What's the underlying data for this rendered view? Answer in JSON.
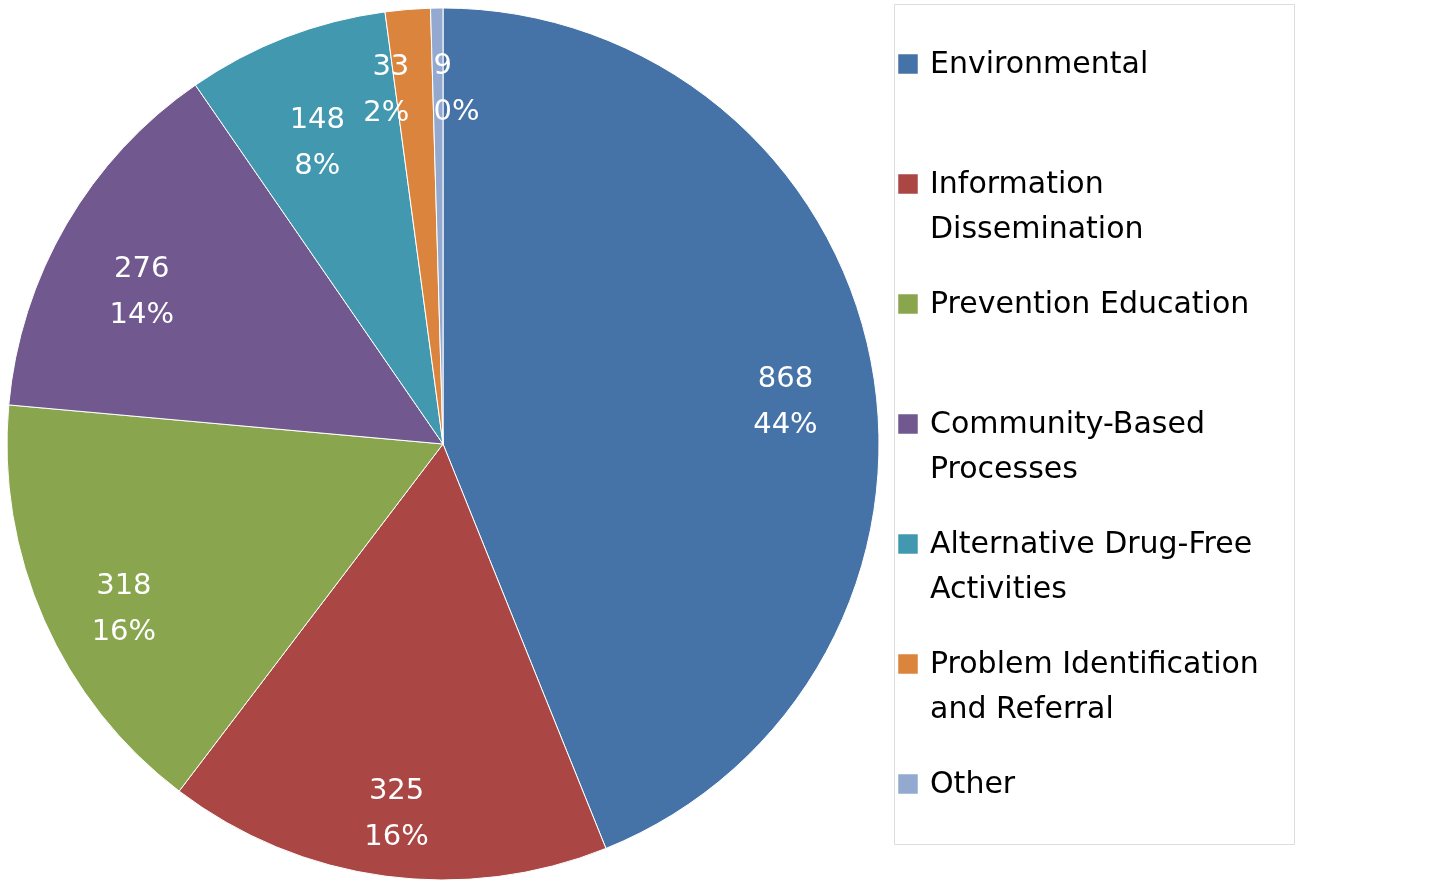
{
  "chart_data": {
    "type": "pie",
    "categories": [
      "Environmental",
      "Information Dissemination",
      "Prevention Education",
      "Community-Based Processes",
      "Alternative Drug-Free Activities",
      "Problem Identification and Referral",
      "Other"
    ],
    "values": [
      868,
      325,
      318,
      276,
      148,
      33,
      9
    ],
    "colors": [
      "#4572a7",
      "#aa4643",
      "#89a54e",
      "#71588f",
      "#4198af",
      "#db843d",
      "#93a9cf"
    ],
    "value_labels": [
      "868\n44%",
      "325\n16%",
      "318\n16%",
      "276\n14%",
      "148\n8%",
      "33\n2%",
      "9\n0%"
    ],
    "legend": "right"
  }
}
